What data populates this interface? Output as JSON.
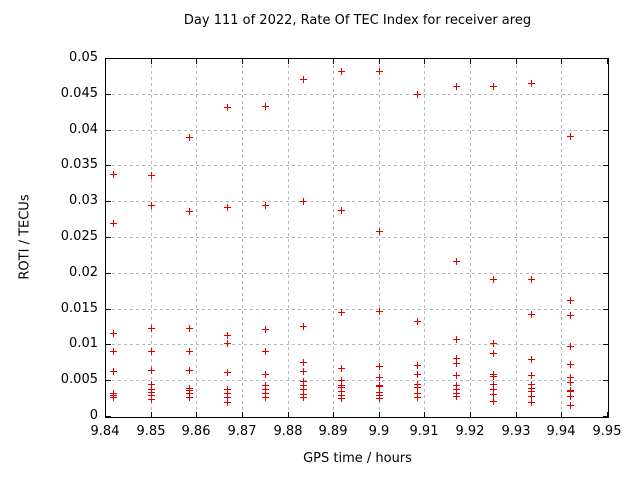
{
  "chart_data": {
    "type": "scatter",
    "title": "Day 111 of 2022, Rate Of TEC Index for receiver areg",
    "xlabel": "GPS time / hours",
    "ylabel": "ROTI / TECUs",
    "xlim": [
      9.84,
      9.95
    ],
    "ylim": [
      0,
      0.05
    ],
    "grid": true,
    "legend": "none",
    "marker": {
      "symbol": "plus",
      "color": "#dd0000"
    },
    "xticks": {
      "values": [
        9.84,
        9.85,
        9.86,
        9.87,
        9.88,
        9.89,
        9.9,
        9.91,
        9.92,
        9.93,
        9.94,
        9.95
      ],
      "labels": [
        "9.84",
        "9.85",
        "9.86",
        "9.87",
        "9.88",
        "9.89",
        "9.9",
        "9.91",
        "9.92",
        "9.93",
        "9.94",
        "9.95"
      ]
    },
    "yticks": {
      "values": [
        0,
        0.005,
        0.01,
        0.015,
        0.02,
        0.025,
        0.03,
        0.035,
        0.04,
        0.045,
        0.05
      ],
      "labels": [
        "0",
        "0.005",
        "0.01",
        "0.015",
        "0.02",
        "0.025",
        "0.03",
        "0.035",
        "0.04",
        "0.045",
        "0.05"
      ]
    },
    "series": [
      {
        "name": "ROTI",
        "columns": [
          {
            "x": 9.8417,
            "y": [
              0.0339,
              0.027,
              0.0117,
              0.0092,
              0.0063,
              0.0033,
              0.003,
              0.0028
            ]
          },
          {
            "x": 9.85,
            "y": [
              0.0337,
              0.0295,
              0.0123,
              0.0092,
              0.0065,
              0.0046,
              0.0038,
              0.0034,
              0.003,
              0.0024
            ]
          },
          {
            "x": 9.8583,
            "y": [
              0.039,
              0.0287,
              0.0123,
              0.0092,
              0.0065,
              0.004,
              0.0037,
              0.0033,
              0.0028
            ]
          },
          {
            "x": 9.8667,
            "y": [
              0.0432,
              0.0293,
              0.0114,
              0.0103,
              0.0062,
              0.0038,
              0.0033,
              0.0028,
              0.0021
            ]
          },
          {
            "x": 9.875,
            "y": [
              0.0434,
              0.0295,
              0.0122,
              0.0092,
              0.0059,
              0.0044,
              0.0038,
              0.0033,
              0.0028
            ]
          },
          {
            "x": 9.8833,
            "y": [
              0.0471,
              0.0301,
              0.0127,
              0.0076,
              0.0063,
              0.005,
              0.0044,
              0.0038,
              0.0031,
              0.0027
            ]
          },
          {
            "x": 9.8917,
            "y": [
              0.0482,
              0.0289,
              0.0146,
              0.0068,
              0.0051,
              0.0044,
              0.0041,
              0.0035,
              0.003,
              0.0026
            ]
          },
          {
            "x": 9.9,
            "y": [
              0.0483,
              0.0259,
              0.0147,
              0.007,
              0.0055,
              0.0044,
              0.0042,
              0.0034,
              0.003,
              0.0026
            ]
          },
          {
            "x": 9.9083,
            "y": [
              0.0451,
              0.0134,
              0.0072,
              0.0059,
              0.0045,
              0.0041,
              0.0033,
              0.0028
            ]
          },
          {
            "x": 9.9167,
            "y": [
              0.0461,
              0.0217,
              0.0109,
              0.0082,
              0.0075,
              0.0058,
              0.0044,
              0.0038,
              0.0033,
              0.0029
            ]
          },
          {
            "x": 9.925,
            "y": [
              0.0461,
              0.0192,
              0.0103,
              0.0089,
              0.0059,
              0.0057,
              0.0045,
              0.0039,
              0.0032,
              0.0022
            ]
          },
          {
            "x": 9.9333,
            "y": [
              0.0466,
              0.0192,
              0.0143,
              0.008,
              0.0058,
              0.0046,
              0.004,
              0.0036,
              0.0029,
              0.002
            ]
          },
          {
            "x": 9.9417,
            "y": [
              0.0392,
              0.0163,
              0.0142,
              0.0099,
              0.0074,
              0.0055,
              0.0048,
              0.0037,
              0.0035,
              0.0029,
              0.0016
            ]
          }
        ]
      }
    ],
    "colors": {
      "background": "#ffffff",
      "axis": "#000000",
      "grid": "#b9b9b9",
      "marker": "#dd0000",
      "text": "#000000"
    }
  }
}
